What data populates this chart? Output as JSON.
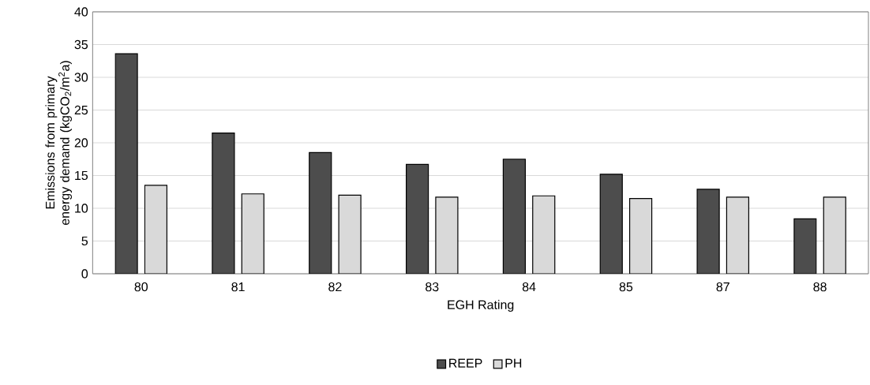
{
  "chart_data": {
    "type": "bar",
    "xlabel": "EGH Rating",
    "ylabel": "Emissions from primary energy demand (kgCO$_{2}$/m$^{2}$a)",
    "categories": [
      "80",
      "81",
      "82",
      "83",
      "84",
      "85",
      "87",
      "88"
    ],
    "series": [
      {
        "name": "REEP",
        "color": "#4d4d4d",
        "values": [
          33.6,
          21.5,
          18.5,
          16.7,
          17.5,
          15.2,
          12.9,
          8.4
        ]
      },
      {
        "name": "PH",
        "color": "#d9d9d9",
        "values": [
          13.5,
          12.2,
          12.0,
          11.7,
          11.9,
          11.5,
          11.7,
          11.7
        ]
      }
    ],
    "ylim": [
      0,
      40
    ],
    "yticks": [
      0,
      5,
      10,
      15,
      20,
      25,
      30,
      35,
      40
    ],
    "grid": "y",
    "legend": "bottom"
  }
}
